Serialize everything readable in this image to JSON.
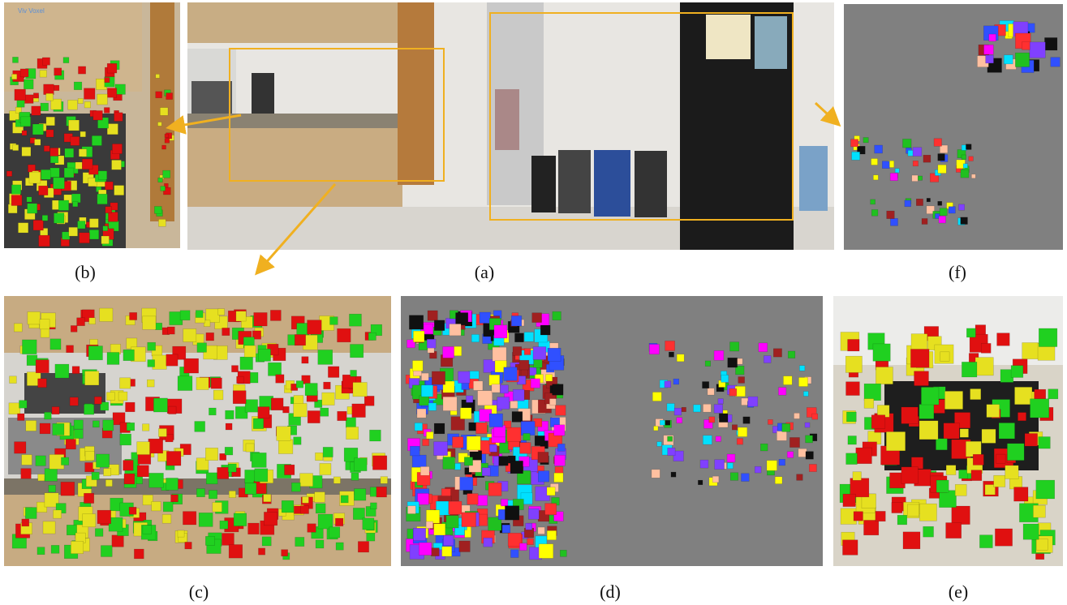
{
  "figure": {
    "panels": [
      {
        "label": "(a)"
      },
      {
        "label": "(b)"
      },
      {
        "label": "(c)"
      },
      {
        "label": "(d)"
      },
      {
        "label": "(e)"
      },
      {
        "label": "(f)"
      }
    ],
    "annotation": "Viv Voxel"
  }
}
